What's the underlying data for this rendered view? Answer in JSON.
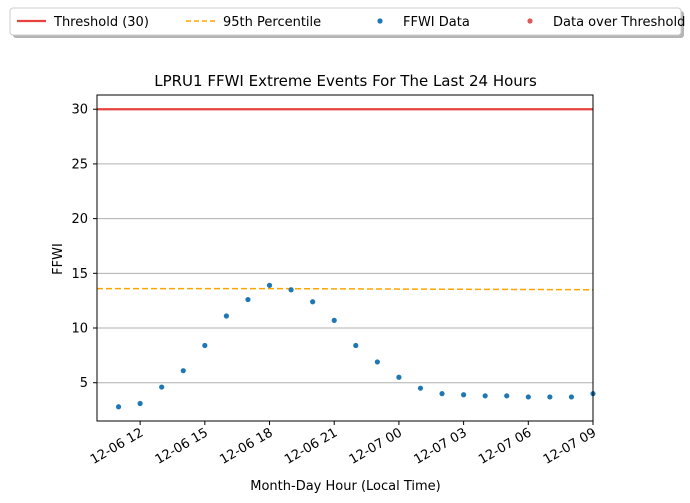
{
  "chart_data": {
    "type": "scatter",
    "title": "LPRU1 FFWI Extreme Events For The Last 24 Hours",
    "xlabel": "Month-Day Hour (Local Time)",
    "ylabel": "FFWI",
    "xlim": [
      "2023-12-06 10:00",
      "2023-12-07 09:00"
    ],
    "ylim": [
      1.5,
      31.3
    ],
    "x_ticks": [
      "12-06 12",
      "12-06 15",
      "12-06 18",
      "12-06 21",
      "12-07 00",
      "12-07 03",
      "12-07 06",
      "12-07 09"
    ],
    "y_ticks": [
      5,
      10,
      15,
      20,
      25,
      30
    ],
    "grid": "horizontal",
    "legend_position": "top, above plot",
    "legend": [
      {
        "label": "Threshold (30)",
        "kind": "line",
        "color": "#e8423f"
      },
      {
        "label": "95th Percentile",
        "kind": "dashed-line",
        "color": "#ffa500"
      },
      {
        "label": "FFWI Data",
        "kind": "marker",
        "color": "#1f77b4"
      },
      {
        "label": "Data over Threshold",
        "kind": "marker",
        "color": "#e05a5a"
      }
    ],
    "threshold": {
      "name": "Threshold (30)",
      "value": 30,
      "color": "#e8423f"
    },
    "percentile_95": {
      "name": "95th Percentile",
      "color": "#ffa500",
      "x": [
        "2023-12-06 10:00",
        "2023-12-06 18:00",
        "2023-12-07 09:00"
      ],
      "y": [
        13.6,
        13.6,
        13.5
      ]
    },
    "series": [
      {
        "name": "FFWI Data",
        "color": "#1f77b4",
        "x": [
          "2023-12-06 11:00",
          "2023-12-06 12:00",
          "2023-12-06 13:00",
          "2023-12-06 14:00",
          "2023-12-06 15:00",
          "2023-12-06 16:00",
          "2023-12-06 17:00",
          "2023-12-06 18:00",
          "2023-12-06 19:00",
          "2023-12-06 20:00",
          "2023-12-06 21:00",
          "2023-12-06 22:00",
          "2023-12-06 23:00",
          "2023-12-07 00:00",
          "2023-12-07 01:00",
          "2023-12-07 02:00",
          "2023-12-07 03:00",
          "2023-12-07 04:00",
          "2023-12-07 05:00",
          "2023-12-07 06:00",
          "2023-12-07 07:00",
          "2023-12-07 08:00",
          "2023-12-07 09:00"
        ],
        "y": [
          2.8,
          3.1,
          4.6,
          6.1,
          8.4,
          11.1,
          12.6,
          13.9,
          13.5,
          12.4,
          10.7,
          8.4,
          6.9,
          5.5,
          4.5,
          4.0,
          3.9,
          3.8,
          3.8,
          3.7,
          3.7,
          3.7,
          4.0
        ]
      },
      {
        "name": "Data over Threshold",
        "color": "#e05a5a",
        "x": [],
        "y": []
      }
    ]
  }
}
